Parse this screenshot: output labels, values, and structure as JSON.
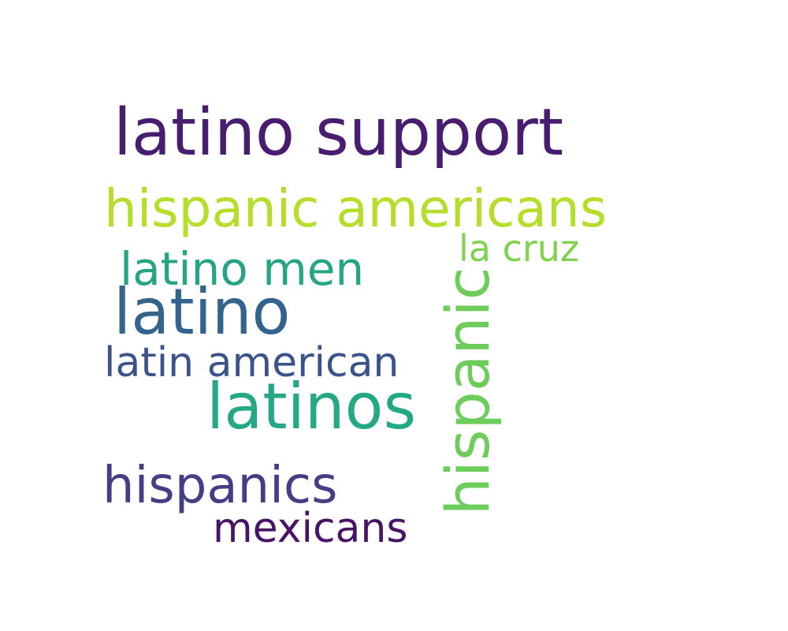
{
  "words": [
    {
      "text": "latino support",
      "color": "#481c6e"
    },
    {
      "text": "hispanic americans",
      "color": "#b5de2b"
    },
    {
      "text": "latino men",
      "color": "#26a584"
    },
    {
      "text": "la cruz",
      "color": "#7ed34e"
    },
    {
      "text": "latino",
      "color": "#32648e"
    },
    {
      "text": "latin american",
      "color": "#3b528b"
    },
    {
      "text": "latinos",
      "color": "#24a885"
    },
    {
      "text": "hispanic",
      "color": "#6ccd5a"
    },
    {
      "text": "hispanics",
      "color": "#433e85"
    },
    {
      "text": "mexicans",
      "color": "#471365"
    }
  ]
}
